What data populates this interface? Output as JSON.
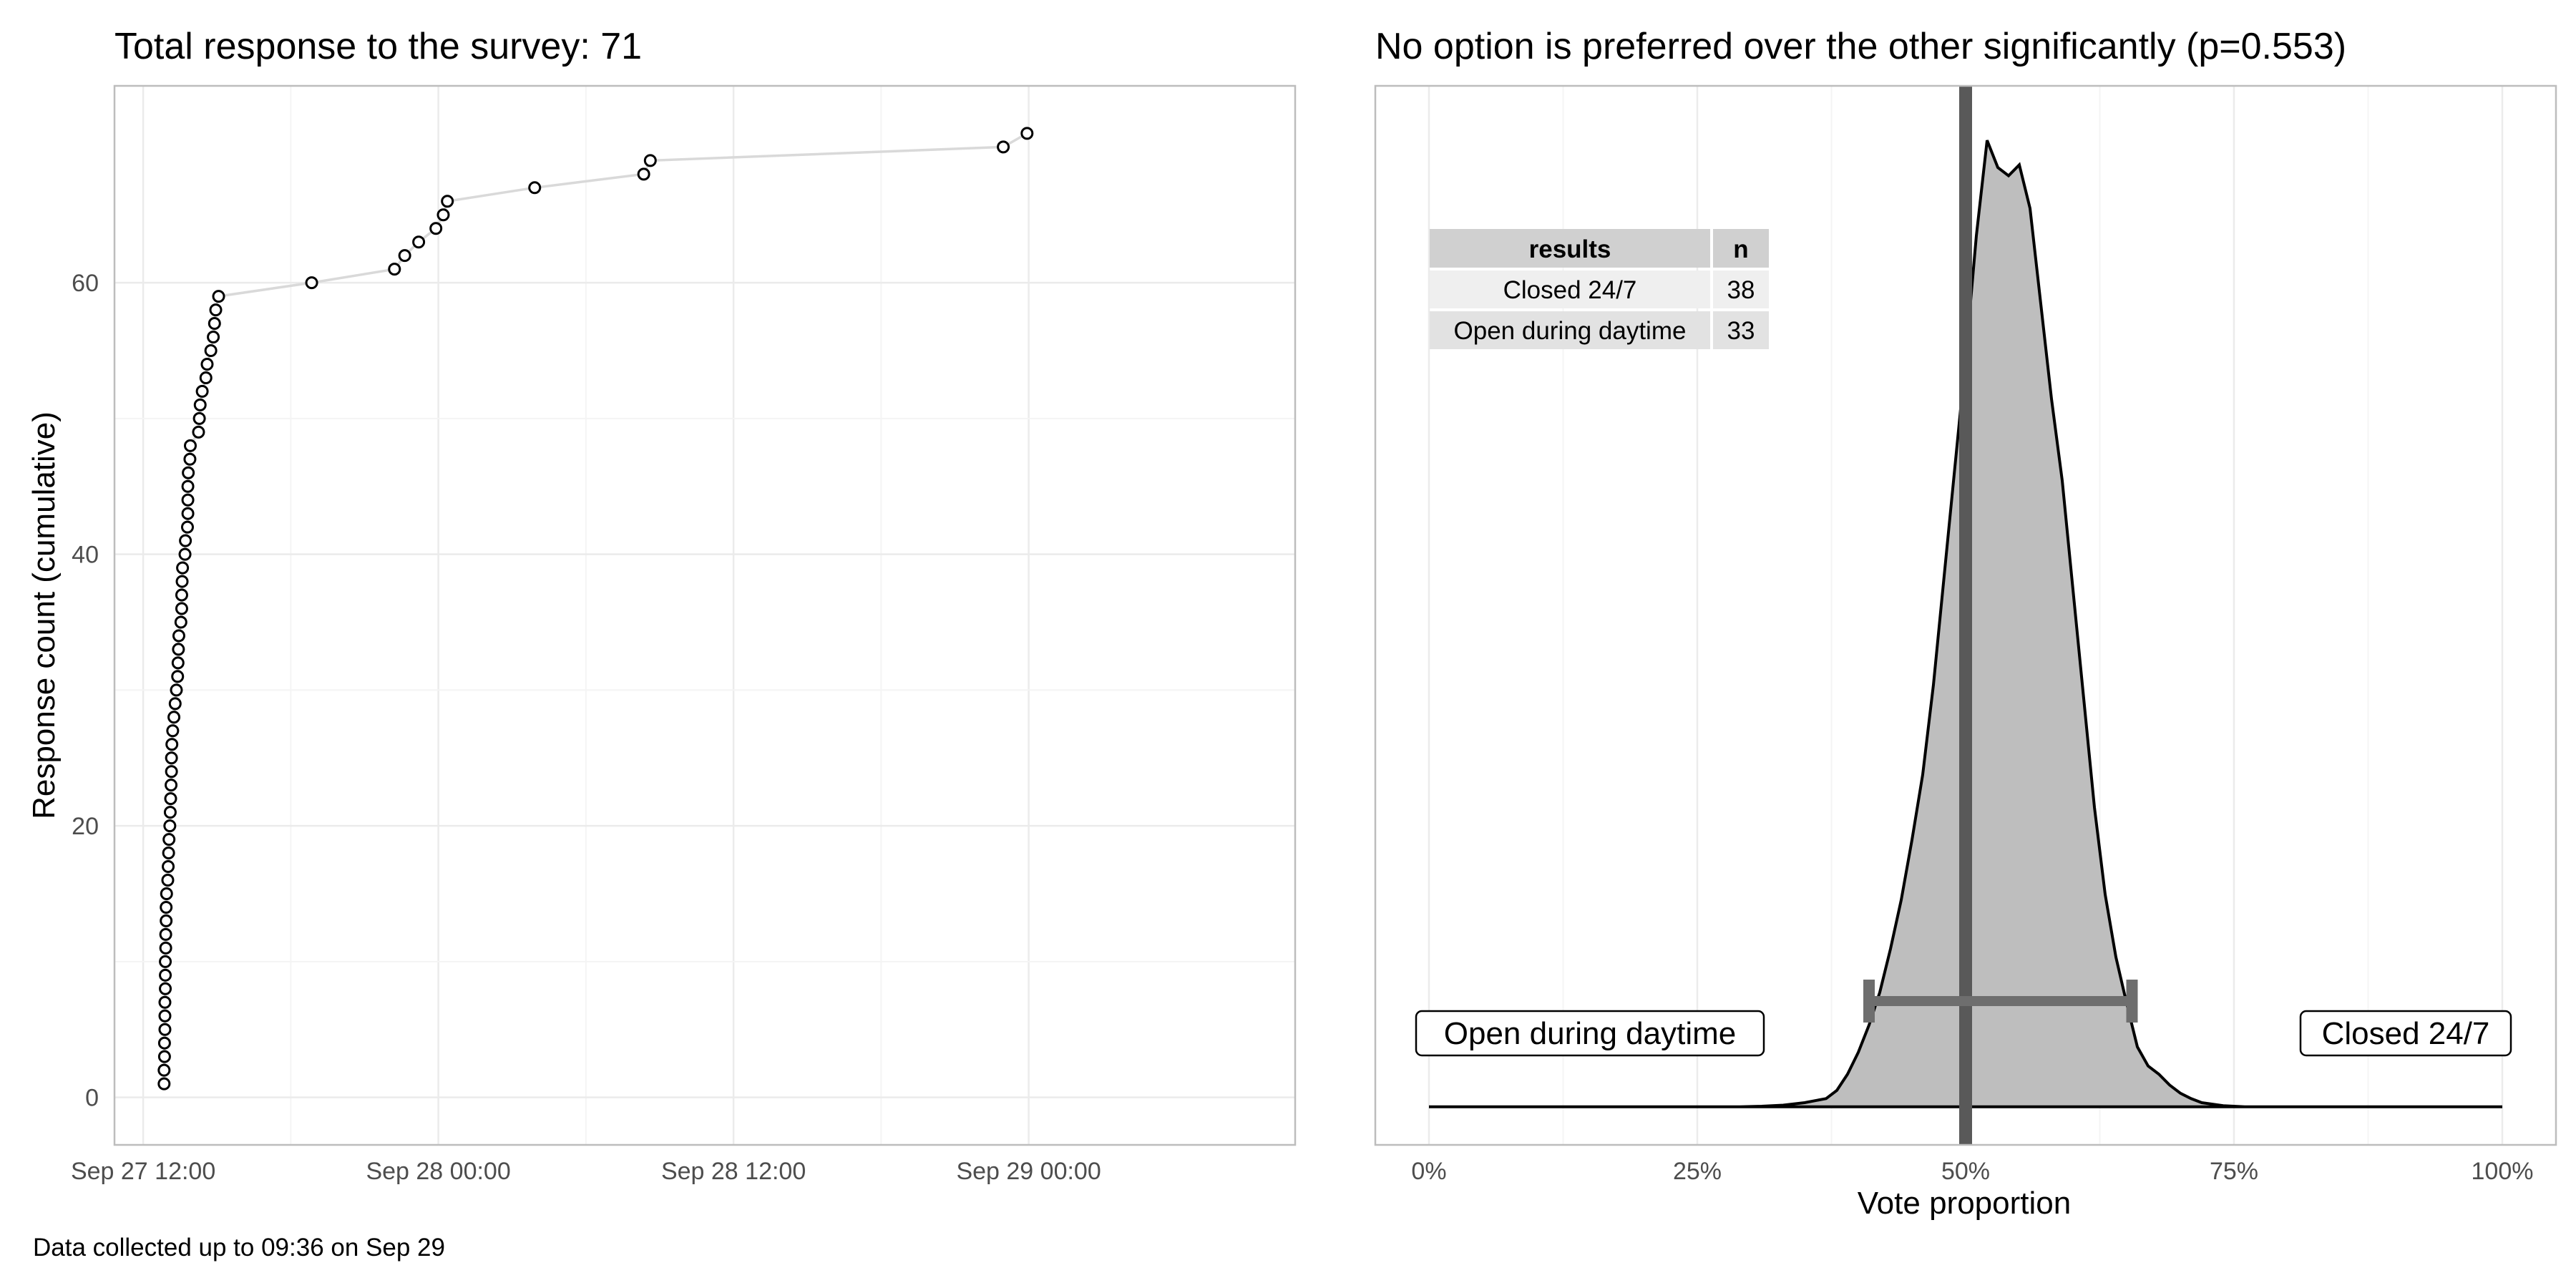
{
  "caption": "Data collected up to 09:36 on Sep 29",
  "chart_data": [
    {
      "type": "scatter",
      "title": "Total response to the survey: 71",
      "xlabel": "",
      "ylabel": "Response count (cumulative)",
      "x_ticks": [
        "Sep 27 12:00",
        "Sep 28 00:00",
        "Sep 28 12:00",
        "Sep 29 00:00"
      ],
      "y_ticks": [
        "0",
        "20",
        "40",
        "60"
      ],
      "xlim": [
        "Sep 27 10:50",
        "Sep 29 10:50"
      ],
      "ylim": [
        -3.5,
        74.5
      ],
      "grid": true,
      "line_color": "#d9d9d9",
      "point_stroke": "#000000",
      "points": [
        {
          "x": "Sep 27 12:51",
          "y": 1
        },
        {
          "x": "Sep 27 12:51",
          "y": 2
        },
        {
          "x": "Sep 27 12:52",
          "y": 3
        },
        {
          "x": "Sep 27 12:52",
          "y": 4
        },
        {
          "x": "Sep 27 12:53",
          "y": 5
        },
        {
          "x": "Sep 27 12:53",
          "y": 6
        },
        {
          "x": "Sep 27 12:53",
          "y": 7
        },
        {
          "x": "Sep 27 12:54",
          "y": 8
        },
        {
          "x": "Sep 27 12:54",
          "y": 9
        },
        {
          "x": "Sep 27 12:54",
          "y": 10
        },
        {
          "x": "Sep 27 12:55",
          "y": 11
        },
        {
          "x": "Sep 27 12:55",
          "y": 12
        },
        {
          "x": "Sep 27 12:56",
          "y": 13
        },
        {
          "x": "Sep 27 12:56",
          "y": 14
        },
        {
          "x": "Sep 27 12:57",
          "y": 15
        },
        {
          "x": "Sep 27 13:00",
          "y": 16
        },
        {
          "x": "Sep 27 13:01",
          "y": 17
        },
        {
          "x": "Sep 27 13:02",
          "y": 18
        },
        {
          "x": "Sep 27 13:03",
          "y": 19
        },
        {
          "x": "Sep 27 13:05",
          "y": 20
        },
        {
          "x": "Sep 27 13:06",
          "y": 21
        },
        {
          "x": "Sep 27 13:07",
          "y": 22
        },
        {
          "x": "Sep 27 13:08",
          "y": 23
        },
        {
          "x": "Sep 27 13:09",
          "y": 24
        },
        {
          "x": "Sep 27 13:09",
          "y": 25
        },
        {
          "x": "Sep 27 13:10",
          "y": 26
        },
        {
          "x": "Sep 27 13:12",
          "y": 27
        },
        {
          "x": "Sep 27 13:15",
          "y": 28
        },
        {
          "x": "Sep 27 13:18",
          "y": 29
        },
        {
          "x": "Sep 27 13:21",
          "y": 30
        },
        {
          "x": "Sep 27 13:24",
          "y": 31
        },
        {
          "x": "Sep 27 13:25",
          "y": 32
        },
        {
          "x": "Sep 27 13:26",
          "y": 33
        },
        {
          "x": "Sep 27 13:27",
          "y": 34
        },
        {
          "x": "Sep 27 13:32",
          "y": 35
        },
        {
          "x": "Sep 27 13:34",
          "y": 36
        },
        {
          "x": "Sep 27 13:34",
          "y": 37
        },
        {
          "x": "Sep 27 13:35",
          "y": 38
        },
        {
          "x": "Sep 27 13:36",
          "y": 39
        },
        {
          "x": "Sep 27 13:42",
          "y": 40
        },
        {
          "x": "Sep 27 13:43",
          "y": 41
        },
        {
          "x": "Sep 27 13:48",
          "y": 42
        },
        {
          "x": "Sep 27 13:49",
          "y": 43
        },
        {
          "x": "Sep 27 13:49",
          "y": 44
        },
        {
          "x": "Sep 27 13:49",
          "y": 45
        },
        {
          "x": "Sep 27 13:50",
          "y": 46
        },
        {
          "x": "Sep 27 13:54",
          "y": 47
        },
        {
          "x": "Sep 27 13:55",
          "y": 48
        },
        {
          "x": "Sep 27 14:15",
          "y": 49
        },
        {
          "x": "Sep 27 14:17",
          "y": 50
        },
        {
          "x": "Sep 27 14:19",
          "y": 51
        },
        {
          "x": "Sep 27 14:24",
          "y": 52
        },
        {
          "x": "Sep 27 14:33",
          "y": 53
        },
        {
          "x": "Sep 27 14:36",
          "y": 54
        },
        {
          "x": "Sep 27 14:45",
          "y": 55
        },
        {
          "x": "Sep 27 14:51",
          "y": 56
        },
        {
          "x": "Sep 27 14:54",
          "y": 57
        },
        {
          "x": "Sep 27 14:57",
          "y": 58
        },
        {
          "x": "Sep 27 15:04",
          "y": 59
        },
        {
          "x": "Sep 27 18:51",
          "y": 60
        },
        {
          "x": "Sep 27 22:13",
          "y": 61
        },
        {
          "x": "Sep 27 22:38",
          "y": 62
        },
        {
          "x": "Sep 27 23:12",
          "y": 63
        },
        {
          "x": "Sep 27 23:54",
          "y": 64
        },
        {
          "x": "Sep 28 00:12",
          "y": 65
        },
        {
          "x": "Sep 28 00:22",
          "y": 66
        },
        {
          "x": "Sep 28 03:55",
          "y": 67
        },
        {
          "x": "Sep 28 08:21",
          "y": 68
        },
        {
          "x": "Sep 28 08:37",
          "y": 69
        },
        {
          "x": "Sep 28 22:58",
          "y": 70
        },
        {
          "x": "Sep 28 23:56",
          "y": 71
        }
      ]
    },
    {
      "type": "area",
      "title": "No option is preferred over the other significantly (p=0.553)",
      "xlabel": "Vote proportion",
      "ylabel": "",
      "x_ticks": [
        "0%",
        "25%",
        "50%",
        "75%",
        "100%"
      ],
      "xlim": [
        -0.05,
        1.05
      ],
      "grid": true,
      "fill_color": "#bebebe",
      "vline": {
        "x": 0.5,
        "color": "#595959"
      },
      "interval": {
        "low": 0.41,
        "high": 0.655,
        "color": "#6e6e6e"
      },
      "density": [
        {
          "x": 0.0,
          "y": 0
        },
        {
          "x": 0.29,
          "y": 0
        },
        {
          "x": 0.31,
          "y": 0.002
        },
        {
          "x": 0.33,
          "y": 0.006
        },
        {
          "x": 0.35,
          "y": 0.015
        },
        {
          "x": 0.37,
          "y": 0.03
        },
        {
          "x": 0.38,
          "y": 0.06
        },
        {
          "x": 0.39,
          "y": 0.12
        },
        {
          "x": 0.4,
          "y": 0.2
        },
        {
          "x": 0.41,
          "y": 0.3
        },
        {
          "x": 0.42,
          "y": 0.42
        },
        {
          "x": 0.43,
          "y": 0.58
        },
        {
          "x": 0.44,
          "y": 0.76
        },
        {
          "x": 0.45,
          "y": 0.98
        },
        {
          "x": 0.46,
          "y": 1.22
        },
        {
          "x": 0.47,
          "y": 1.55
        },
        {
          "x": 0.48,
          "y": 1.95
        },
        {
          "x": 0.49,
          "y": 2.35
        },
        {
          "x": 0.5,
          "y": 2.75
        },
        {
          "x": 0.51,
          "y": 3.2
        },
        {
          "x": 0.52,
          "y": 3.55
        },
        {
          "x": 0.53,
          "y": 3.45
        },
        {
          "x": 0.54,
          "y": 3.42
        },
        {
          "x": 0.55,
          "y": 3.46
        },
        {
          "x": 0.56,
          "y": 3.3
        },
        {
          "x": 0.57,
          "y": 2.95
        },
        {
          "x": 0.58,
          "y": 2.6
        },
        {
          "x": 0.59,
          "y": 2.3
        },
        {
          "x": 0.6,
          "y": 1.9
        },
        {
          "x": 0.61,
          "y": 1.5
        },
        {
          "x": 0.62,
          "y": 1.1
        },
        {
          "x": 0.63,
          "y": 0.78
        },
        {
          "x": 0.64,
          "y": 0.55
        },
        {
          "x": 0.65,
          "y": 0.38
        },
        {
          "x": 0.66,
          "y": 0.22
        },
        {
          "x": 0.67,
          "y": 0.15
        },
        {
          "x": 0.68,
          "y": 0.12
        },
        {
          "x": 0.69,
          "y": 0.08
        },
        {
          "x": 0.7,
          "y": 0.05
        },
        {
          "x": 0.71,
          "y": 0.03
        },
        {
          "x": 0.72,
          "y": 0.015
        },
        {
          "x": 0.74,
          "y": 0.004
        },
        {
          "x": 0.76,
          "y": 0
        },
        {
          "x": 1.0,
          "y": 0
        }
      ],
      "ylim": [
        -0.14,
        3.75
      ],
      "table": {
        "headers": [
          "results",
          "n"
        ],
        "rows": [
          [
            "Closed 24/7",
            "38"
          ],
          [
            "Open during daytime",
            "33"
          ]
        ]
      },
      "annotations": [
        {
          "text": "Open during daytime",
          "x": 0.15,
          "y": 0.27
        },
        {
          "text": "Closed 24/7",
          "x": 0.91,
          "y": 0.27
        }
      ]
    }
  ]
}
